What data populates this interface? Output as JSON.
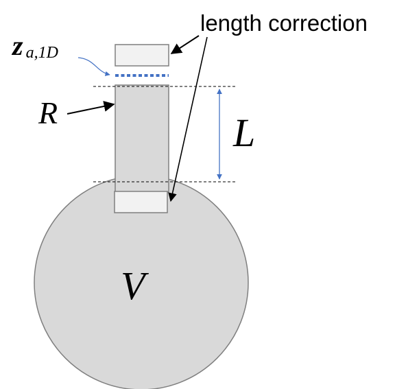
{
  "labels": {
    "length_correction": "length correction",
    "impedance_symbol": "z",
    "impedance_subscript": "a,1D",
    "radius": "R",
    "length": "L",
    "volume": "V"
  },
  "colors": {
    "fill_grey": "#d9d9d9",
    "stroke_grey": "#7f7f7f",
    "box_fill": "#f2f2f2",
    "accent_blue": "#4472c4",
    "text": "#000000"
  }
}
